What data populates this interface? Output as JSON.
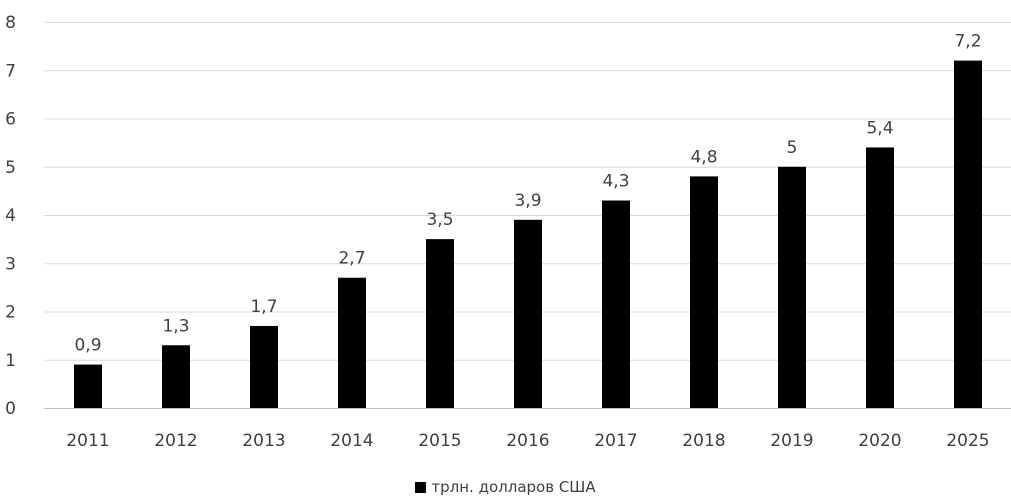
{
  "chart_data": {
    "type": "bar",
    "categories": [
      "2011",
      "2012",
      "2013",
      "2014",
      "2015",
      "2016",
      "2017",
      "2018",
      "2019",
      "2020",
      "2025"
    ],
    "series": [
      {
        "name": "трлн. долларов США",
        "values": [
          0.9,
          1.3,
          1.7,
          2.7,
          3.5,
          3.9,
          4.3,
          4.8,
          5,
          5.4,
          7.2
        ],
        "data_labels": [
          "0,9",
          "1,3",
          "1,7",
          "2,7",
          "3,5",
          "3,9",
          "4,3",
          "4,8",
          "5",
          "5,4",
          "7,2"
        ],
        "color": "#000000"
      }
    ],
    "y_ticks": [
      "0",
      "1",
      "2",
      "3",
      "4",
      "5",
      "6",
      "7",
      "8"
    ],
    "ylim": [
      0,
      8
    ],
    "grid": true,
    "legend_position": "bottom-center",
    "title": "",
    "xlabel": "",
    "ylabel": ""
  }
}
